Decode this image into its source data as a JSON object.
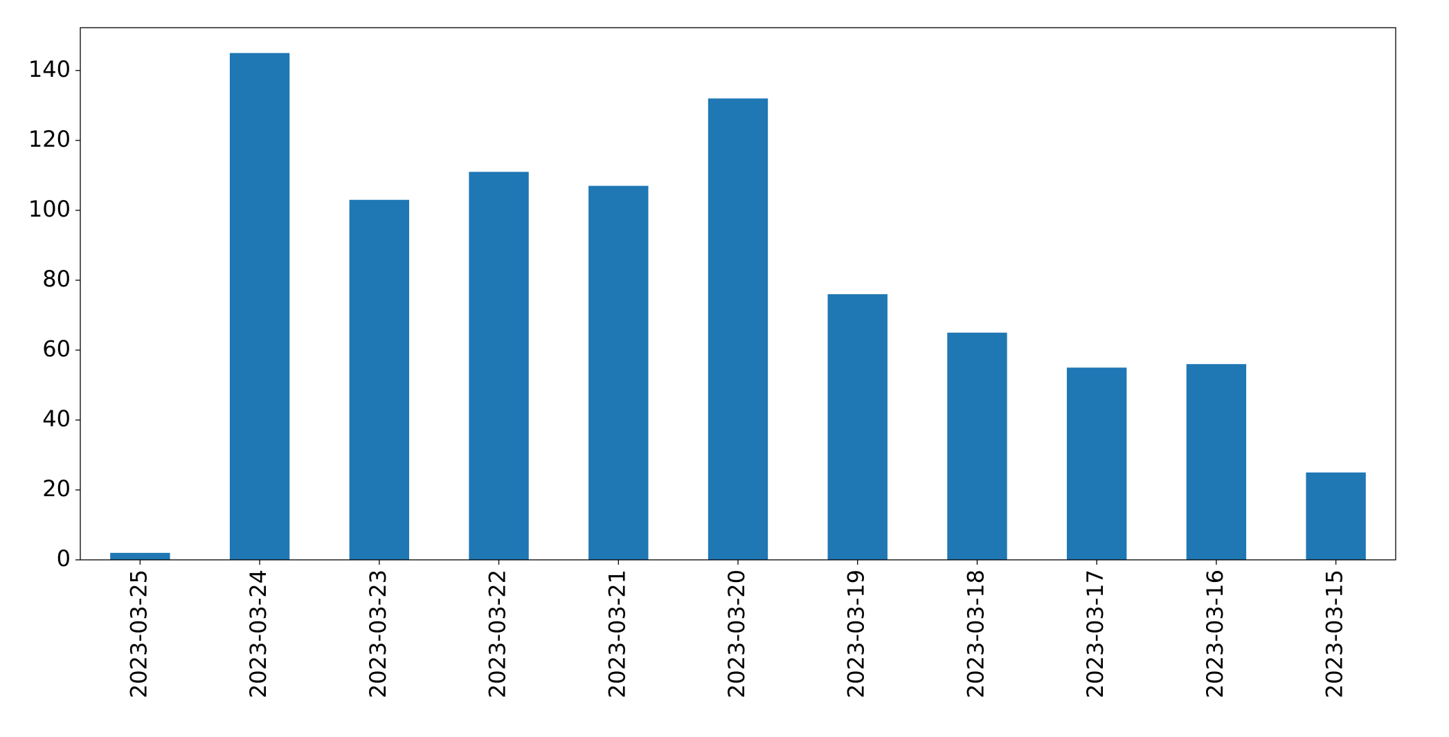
{
  "chart_data": {
    "type": "bar",
    "categories": [
      "2023-03-25",
      "2023-03-24",
      "2023-03-23",
      "2023-03-22",
      "2023-03-21",
      "2023-03-20",
      "2023-03-19",
      "2023-03-18",
      "2023-03-17",
      "2023-03-16",
      "2023-03-15"
    ],
    "values": [
      2,
      145,
      103,
      111,
      107,
      132,
      76,
      65,
      55,
      56,
      25
    ],
    "color": "#1f77b4",
    "ylim": [
      0,
      152.25
    ],
    "yticks": [
      0,
      20,
      40,
      60,
      80,
      100,
      120,
      140
    ],
    "grid": false
  }
}
